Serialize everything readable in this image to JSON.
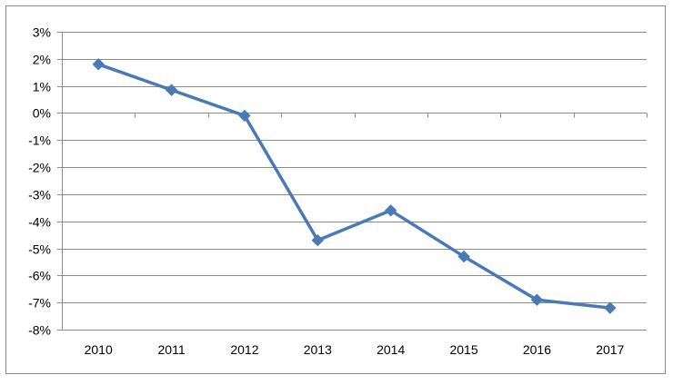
{
  "chart_data": {
    "type": "line",
    "title": "",
    "xlabel": "",
    "ylabel": "",
    "categories": [
      "2010",
      "2011",
      "2012",
      "2013",
      "2014",
      "2015",
      "2016",
      "2017"
    ],
    "series": [
      {
        "values": [
          1.8,
          0.85,
          -0.1,
          -4.7,
          -3.6,
          -5.3,
          -6.9,
          -7.2
        ]
      }
    ],
    "ylim": [
      -8,
      3
    ],
    "yticks": [
      3,
      2,
      1,
      0,
      -1,
      -2,
      -3,
      -4,
      -5,
      -6,
      -7,
      -8
    ],
    "ytick_labels": [
      "3%",
      "2%",
      "1%",
      "0%",
      "-1%",
      "-2%",
      "-3%",
      "-4%",
      "-5%",
      "-6%",
      "-7%",
      "-8%"
    ],
    "grid": true,
    "legend": "none",
    "marker": "diamond",
    "colors": {
      "series": "#4a7ab5",
      "grid": "#8c8c8c",
      "axis": "#8c8c8c"
    }
  }
}
